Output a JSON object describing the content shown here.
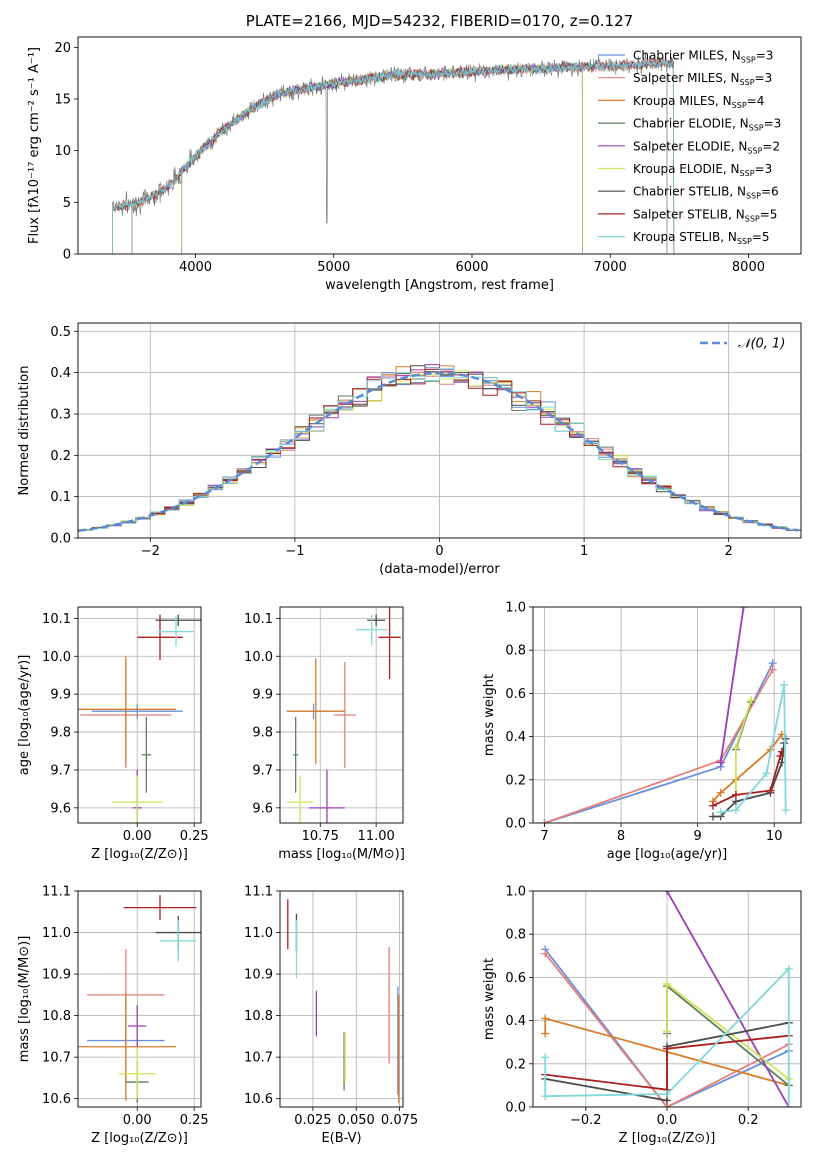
{
  "colors": {
    "chabrier_miles": "#6a8fdc",
    "salpeter_miles": "#e5807a",
    "kroupa_miles": "#d87c2a",
    "chabrier_elodie": "#5f7f5f",
    "salpeter_elodie": "#9b3fb8",
    "kroupa_elodie": "#cfe35a",
    "chabrier_stelib": "#4a4a4a",
    "salpeter_stelib": "#a81f1f",
    "kroupa_stelib": "#80d8d8",
    "gaussian": "#5a8ad8",
    "grid": "#b0b0b0"
  },
  "figure_title": "PLATE=2166, MJD=54232, FIBERID=0170, z=0.127",
  "chart_data": [
    {
      "type": "line",
      "panel": "spectrum",
      "xlabel": "wavelength [Angstrom, rest frame]",
      "ylabel": "Flux [fλ10⁻¹⁷ erg cm⁻² s⁻¹ A⁻¹]",
      "xlim": [
        3150,
        8380
      ],
      "ylim": [
        0,
        21
      ],
      "xticks": [
        "4000",
        "5000",
        "6000",
        "7000",
        "8000"
      ],
      "yticks": [
        "0",
        "5",
        "10",
        "15",
        "20"
      ],
      "grid": false,
      "legend_position": "top-right",
      "spectrum_trend": {
        "x": [
          3400,
          3600,
          3800,
          4000,
          4200,
          4400,
          4600,
          4800,
          5000,
          5400,
          5800,
          6200,
          6600,
          7000,
          7400
        ],
        "y": [
          4.5,
          5,
          6.5,
          9.5,
          12,
          14,
          15.5,
          16,
          16.5,
          17.3,
          17.5,
          17.8,
          18,
          18.2,
          18.5
        ]
      },
      "legend": [
        {
          "label": "Chabrier MILES, N",
          "sub": "SSP",
          "eq": "=3",
          "color_key": "chabrier_miles"
        },
        {
          "label": "Salpeter MILES, N",
          "sub": "SSP",
          "eq": "=3",
          "color_key": "salpeter_miles"
        },
        {
          "label": "Kroupa MILES, N",
          "sub": "SSP",
          "eq": "=4",
          "color_key": "kroupa_miles"
        },
        {
          "label": "Chabrier ELODIE, N",
          "sub": "SSP",
          "eq": "=3",
          "color_key": "chabrier_elodie"
        },
        {
          "label": "Salpeter ELODIE, N",
          "sub": "SSP",
          "eq": "=2",
          "color_key": "salpeter_elodie"
        },
        {
          "label": "Kroupa ELODIE, N",
          "sub": "SSP",
          "eq": "=3",
          "color_key": "kroupa_elodie"
        },
        {
          "label": "Chabrier STELIB, N",
          "sub": "SSP",
          "eq": "=6",
          "color_key": "chabrier_stelib"
        },
        {
          "label": "Salpeter STELIB, N",
          "sub": "SSP",
          "eq": "=5",
          "color_key": "salpeter_stelib"
        },
        {
          "label": "Kroupa STELIB, N",
          "sub": "SSP",
          "eq": "=5",
          "color_key": "kroupa_stelib"
        }
      ]
    },
    {
      "type": "histogram",
      "panel": "residuals",
      "xlabel": "(data-model)/error",
      "ylabel": "Normed distribution",
      "xlim": [
        -2.5,
        2.5
      ],
      "ylim": [
        0,
        0.52
      ],
      "xticks": [
        "−2",
        "−1",
        "0",
        "1",
        "2"
      ],
      "yticks": [
        "0.0",
        "0.1",
        "0.2",
        "0.3",
        "0.4",
        "0.5"
      ],
      "grid": true,
      "legend": {
        "label": "𝒩(0, 1)",
        "position": "top-right"
      }
    },
    {
      "type": "scatter",
      "panel": "age_vs_Z",
      "xlabel": "Z [log₁₀(Z/Z⊙)]",
      "ylabel": "age  [log₁₀(age/yr)]",
      "xlim": [
        -0.26,
        0.28
      ],
      "ylim": [
        9.56,
        10.13
      ],
      "xticks": [
        "0.00",
        "0.25"
      ],
      "yticks": [
        "9.6",
        "9.7",
        "9.8",
        "9.9",
        "10.0",
        "10.1"
      ],
      "grid": true,
      "points": [
        {
          "c": "chabrier_miles",
          "x": 0.0,
          "xe": 0.2,
          "y": 9.855,
          "ye": 0.02
        },
        {
          "c": "salpeter_miles",
          "x": -0.05,
          "xe": 0.2,
          "y": 9.845,
          "ye": 0.14
        },
        {
          "c": "kroupa_miles",
          "x": -0.05,
          "xe": 0.22,
          "y": 9.86,
          "ye": 0.14
        },
        {
          "c": "chabrier_elodie",
          "x": 0.04,
          "xe": 0.02,
          "y": 9.74,
          "ye": 0.1
        },
        {
          "c": "salpeter_elodie",
          "x": 0.0,
          "xe": 0.02,
          "y": 9.6,
          "ye": 0.1
        },
        {
          "c": "kroupa_elodie",
          "x": 0.0,
          "xe": 0.11,
          "y": 9.615,
          "ye": 0.07
        },
        {
          "c": "chabrier_stelib",
          "x": 0.18,
          "xe": 0.1,
          "y": 10.095,
          "ye": 0.015
        },
        {
          "c": "salpeter_stelib",
          "x": 0.1,
          "xe": 0.1,
          "y": 10.05,
          "ye": 0.06
        },
        {
          "c": "kroupa_stelib",
          "x": 0.17,
          "xe": 0.08,
          "y": 10.065,
          "ye": 0.04
        }
      ]
    },
    {
      "type": "scatter",
      "panel": "age_vs_mass",
      "xlabel": "mass [log₁₀(M/M⊙)]",
      "ylabel": "",
      "xlim": [
        10.57,
        11.12
      ],
      "ylim": [
        9.56,
        10.13
      ],
      "xticks": [
        "10.75",
        "11.00"
      ],
      "yticks": [
        "9.6",
        "9.7",
        "9.8",
        "9.9",
        "10.0",
        "10.1"
      ],
      "grid": true,
      "points": [
        {
          "c": "chabrier_miles",
          "x": 10.72,
          "xe": 0.12,
          "y": 9.855,
          "ye": 0.02
        },
        {
          "c": "salpeter_miles",
          "x": 10.86,
          "xe": 0.05,
          "y": 9.845,
          "ye": 0.14
        },
        {
          "c": "kroupa_miles",
          "x": 10.73,
          "xe": 0.13,
          "y": 9.855,
          "ye": 0.14
        },
        {
          "c": "chabrier_elodie",
          "x": 10.64,
          "xe": 0.01,
          "y": 9.74,
          "ye": 0.1
        },
        {
          "c": "salpeter_elodie",
          "x": 10.78,
          "xe": 0.08,
          "y": 9.6,
          "ye": 0.1
        },
        {
          "c": "kroupa_elodie",
          "x": 10.66,
          "xe": 0.06,
          "y": 9.615,
          "ye": 0.07
        },
        {
          "c": "chabrier_stelib",
          "x": 11.0,
          "xe": 0.04,
          "y": 10.095,
          "ye": 0.015
        },
        {
          "c": "salpeter_stelib",
          "x": 11.06,
          "xe": 0.05,
          "y": 10.05,
          "ye": 0.11
        },
        {
          "c": "kroupa_stelib",
          "x": 10.98,
          "xe": 0.07,
          "y": 10.07,
          "ye": 0.04
        }
      ]
    },
    {
      "type": "line",
      "panel": "weight_vs_age",
      "xlabel": "age  [log₁₀(age/yr)]",
      "ylabel": "mass weight",
      "xlim": [
        6.85,
        10.35
      ],
      "ylim": [
        0,
        1
      ],
      "xticks": [
        "7",
        "8",
        "9",
        "10"
      ],
      "yticks": [
        "0.0",
        "0.2",
        "0.4",
        "0.6",
        "0.8",
        "1.0"
      ],
      "grid": true,
      "series": [
        {
          "c": "chabrier_miles",
          "x": [
            7.0,
            9.3,
            9.98
          ],
          "y": [
            0.0,
            0.26,
            0.74
          ]
        },
        {
          "c": "salpeter_miles",
          "x": [
            7.0,
            9.3,
            9.98
          ],
          "y": [
            0.0,
            0.29,
            0.71
          ]
        },
        {
          "c": "kroupa_miles",
          "x": [
            9.2,
            9.3,
            9.5,
            9.95,
            10.1
          ],
          "y": [
            0.1,
            0.14,
            0.2,
            0.34,
            0.41
          ]
        },
        {
          "c": "chabrier_elodie",
          "x": [
            9.5,
            9.7
          ],
          "y": [
            0.34,
            0.56
          ]
        },
        {
          "c": "salpeter_elodie",
          "x": [
            9.3,
            9.6
          ],
          "y": [
            0.28,
            1.0
          ]
        },
        {
          "c": "kroupa_elodie",
          "x": [
            9.5,
            9.5,
            9.7
          ],
          "y": [
            0.13,
            0.35,
            0.57
          ]
        },
        {
          "c": "chabrier_stelib",
          "x": [
            9.2,
            9.3,
            9.5,
            9.95,
            10.1,
            10.13,
            10.15
          ],
          "y": [
            0.03,
            0.03,
            0.1,
            0.14,
            0.28,
            0.37,
            0.39
          ]
        },
        {
          "c": "salpeter_stelib",
          "x": [
            9.2,
            9.5,
            9.95,
            10.08,
            10.1
          ],
          "y": [
            0.08,
            0.13,
            0.15,
            0.31,
            0.33
          ]
        },
        {
          "c": "kroupa_stelib",
          "x": [
            9.3,
            9.5,
            9.9,
            10.13,
            10.15
          ],
          "y": [
            0.05,
            0.06,
            0.23,
            0.64,
            0.06
          ]
        }
      ]
    },
    {
      "type": "scatter",
      "panel": "mass_vs_Z",
      "xlabel": "Z [log₁₀(Z/Z⊙)]",
      "ylabel": "mass [log₁₀(M/M⊙)]",
      "xlim": [
        -0.26,
        0.28
      ],
      "ylim": [
        10.58,
        11.1
      ],
      "xticks": [
        "0.00",
        "0.25"
      ],
      "yticks": [
        "10.6",
        "10.7",
        "10.8",
        "10.9",
        "11.0",
        "11.1"
      ],
      "grid": true,
      "points": [
        {
          "c": "chabrier_miles",
          "x": -0.05,
          "xe": 0.17,
          "y": 10.74,
          "ye": 0.1
        },
        {
          "c": "salpeter_miles",
          "x": -0.05,
          "xe": 0.17,
          "y": 10.85,
          "ye": 0.11
        },
        {
          "c": "kroupa_miles",
          "x": -0.05,
          "xe": 0.22,
          "y": 10.725,
          "ye": 0.13
        },
        {
          "c": "chabrier_elodie",
          "x": 0.0,
          "xe": 0.05,
          "y": 10.64,
          "ye": 0.05
        },
        {
          "c": "salpeter_elodie",
          "x": 0.0,
          "xe": 0.04,
          "y": 10.775,
          "ye": 0.05
        },
        {
          "c": "kroupa_elodie",
          "x": 0.0,
          "xe": 0.08,
          "y": 10.66,
          "ye": 0.06
        },
        {
          "c": "chabrier_stelib",
          "x": 0.18,
          "xe": 0.1,
          "y": 11.0,
          "ye": 0.04
        },
        {
          "c": "salpeter_stelib",
          "x": 0.1,
          "xe": 0.16,
          "y": 11.06,
          "ye": 0.03
        },
        {
          "c": "kroupa_stelib",
          "x": 0.18,
          "xe": 0.08,
          "y": 10.98,
          "ye": 0.05
        }
      ]
    },
    {
      "type": "scatter",
      "panel": "mass_vs_EBV",
      "xlabel": "E(B-V)",
      "ylabel": "",
      "xlim": [
        0.006,
        0.077
      ],
      "ylim": [
        10.58,
        11.1
      ],
      "xticks": [
        "0.025",
        "0.050",
        "0.075"
      ],
      "yticks": [
        "10.6",
        "10.7",
        "10.8",
        "10.9",
        "11.0",
        "11.1"
      ],
      "grid": true,
      "points": [
        {
          "c": "chabrier_miles",
          "x": 0.074,
          "xe": 0.0,
          "y": 10.74,
          "ye": 0.13
        },
        {
          "c": "salpeter_miles",
          "x": 0.069,
          "xe": 0.0,
          "y": 10.825,
          "ye": 0.14
        },
        {
          "c": "kroupa_miles",
          "x": 0.0745,
          "xe": 0.0,
          "y": 10.72,
          "ye": 0.13
        },
        {
          "c": "chabrier_elodie",
          "x": 0.043,
          "xe": 0.0,
          "y": 10.69,
          "ye": 0.07
        },
        {
          "c": "salpeter_elodie",
          "x": 0.027,
          "xe": 0.0,
          "y": 10.805,
          "ye": 0.055
        },
        {
          "c": "kroupa_elodie",
          "x": 0.0435,
          "xe": 0.0,
          "y": 10.7,
          "ye": 0.06
        },
        {
          "c": "chabrier_stelib",
          "x": 0.0155,
          "xe": 0.0,
          "y": 11.0,
          "ye": 0.045
        },
        {
          "c": "salpeter_stelib",
          "x": 0.0105,
          "xe": 0.0,
          "y": 11.02,
          "ye": 0.06
        },
        {
          "c": "kroupa_stelib",
          "x": 0.0155,
          "xe": 0.0,
          "y": 10.96,
          "ye": 0.07
        }
      ]
    },
    {
      "type": "line",
      "panel": "weight_vs_Z",
      "xlabel": "Z [log₁₀(Z/Z⊙)]",
      "ylabel": "mass weight",
      "xlim": [
        -0.33,
        0.33
      ],
      "ylim": [
        0,
        1
      ],
      "xticks": [
        "−0.2",
        "0.0",
        "0.2"
      ],
      "yticks": [
        "0.0",
        "0.2",
        "0.4",
        "0.6",
        "0.8",
        "1.0"
      ],
      "grid": true,
      "series": [
        {
          "c": "chabrier_miles",
          "x": [
            -0.3,
            0.0,
            0.3
          ],
          "y": [
            0.73,
            0.0,
            0.26
          ]
        },
        {
          "c": "salpeter_miles",
          "x": [
            -0.3,
            0.0,
            0.3
          ],
          "y": [
            0.71,
            0.0,
            0.29
          ]
        },
        {
          "c": "kroupa_miles",
          "x": [
            -0.3,
            -0.3,
            0.3
          ],
          "y": [
            0.34,
            0.41,
            0.1
          ]
        },
        {
          "c": "chabrier_elodie",
          "x": [
            0.0,
            0.0,
            0.3
          ],
          "y": [
            0.34,
            0.56,
            0.1
          ]
        },
        {
          "c": "salpeter_elodie",
          "x": [
            0.0,
            0.3
          ],
          "y": [
            1.0,
            0.0
          ]
        },
        {
          "c": "kroupa_elodie",
          "x": [
            0.0,
            0.0,
            0.3
          ],
          "y": [
            0.35,
            0.57,
            0.13
          ]
        },
        {
          "c": "chabrier_stelib",
          "x": [
            -0.3,
            0.0,
            0.0,
            0.3
          ],
          "y": [
            0.13,
            0.03,
            0.28,
            0.39
          ]
        },
        {
          "c": "salpeter_stelib",
          "x": [
            -0.3,
            0.0,
            0.0,
            0.3
          ],
          "y": [
            0.15,
            0.08,
            0.27,
            0.33
          ]
        },
        {
          "c": "kroupa_stelib",
          "x": [
            -0.3,
            -0.3,
            0.0,
            0.3,
            0.3
          ],
          "y": [
            0.23,
            0.05,
            0.06,
            0.64,
            0.0
          ]
        }
      ]
    }
  ]
}
